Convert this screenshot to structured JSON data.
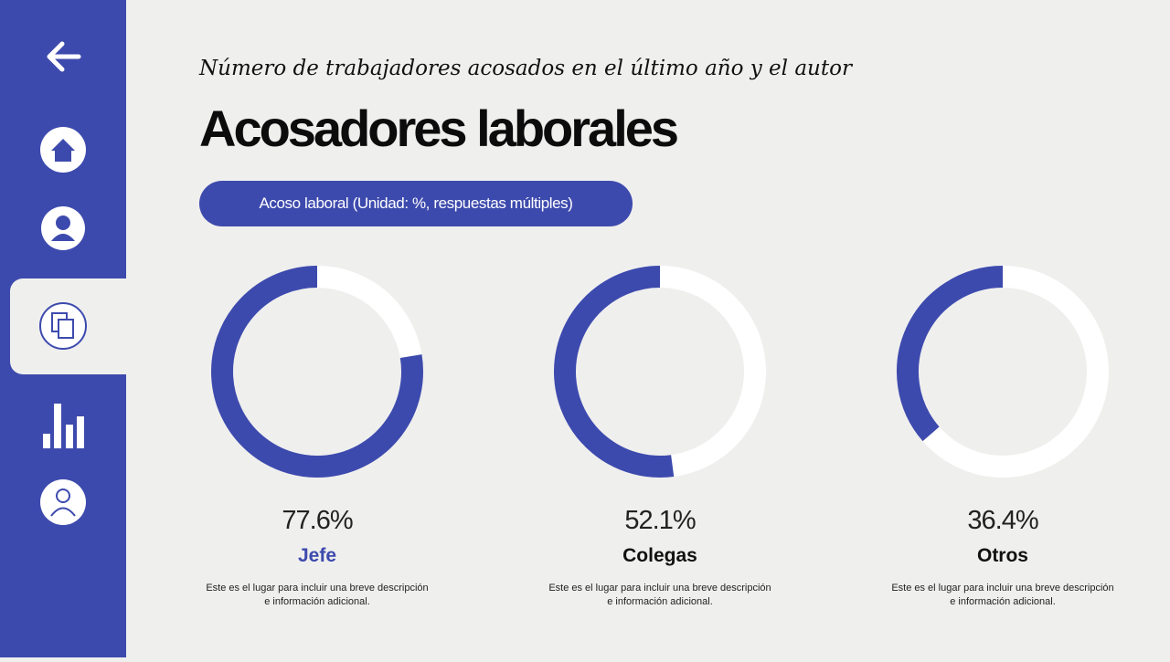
{
  "header": {
    "subtitle": "Número de trabajadores acosados en el último año y el autor",
    "title": "Acosadores laborales"
  },
  "badge": "Acoso laboral (Unidad: %, respuestas múltiples)",
  "chart_data": [
    {
      "type": "donut",
      "categories": [
        "Jefe"
      ],
      "values": [
        77.6
      ],
      "value_labels": [
        "77.6%"
      ],
      "color": "#3d4aad",
      "label_color": "#3d4aad",
      "description": "Este es el lugar para incluir una breve descripción e información adicional."
    },
    {
      "type": "donut",
      "categories": [
        "Colegas"
      ],
      "values": [
        52.1
      ],
      "value_labels": [
        "52.1%"
      ],
      "color": "#3d4aad",
      "label_color": "#111111",
      "description": "Este es el lugar para incluir una breve descripción e información adicional."
    },
    {
      "type": "donut",
      "categories": [
        "Otros"
      ],
      "values": [
        36.4
      ],
      "value_labels": [
        "36.4%"
      ],
      "color": "#3d4aad",
      "label_color": "#111111",
      "description": "Este es el lugar para incluir una breve descripción e información adicional."
    }
  ]
}
